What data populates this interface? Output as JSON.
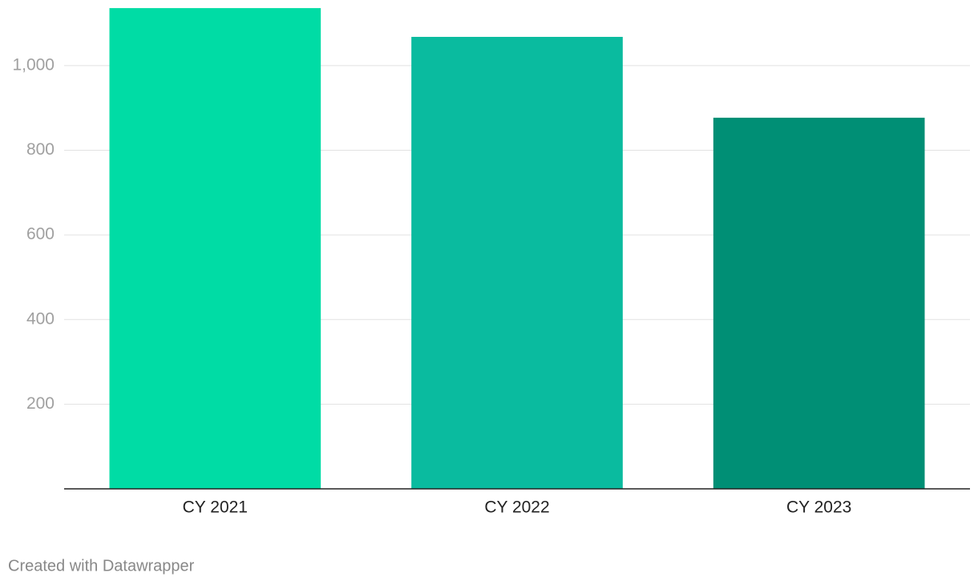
{
  "chart_data": {
    "type": "bar",
    "categories": [
      "CY 2021",
      "CY 2022",
      "CY 2023"
    ],
    "values": [
      1136,
      1068,
      877
    ],
    "colors": [
      "#00dca5",
      "#0abb9f",
      "#008f75"
    ],
    "ylim": [
      0,
      1140
    ],
    "yticks": [
      200,
      400,
      600,
      800,
      {
        "value": 1000,
        "label": "1,000"
      }
    ],
    "grid": true,
    "credit": "Created with Datawrapper"
  }
}
